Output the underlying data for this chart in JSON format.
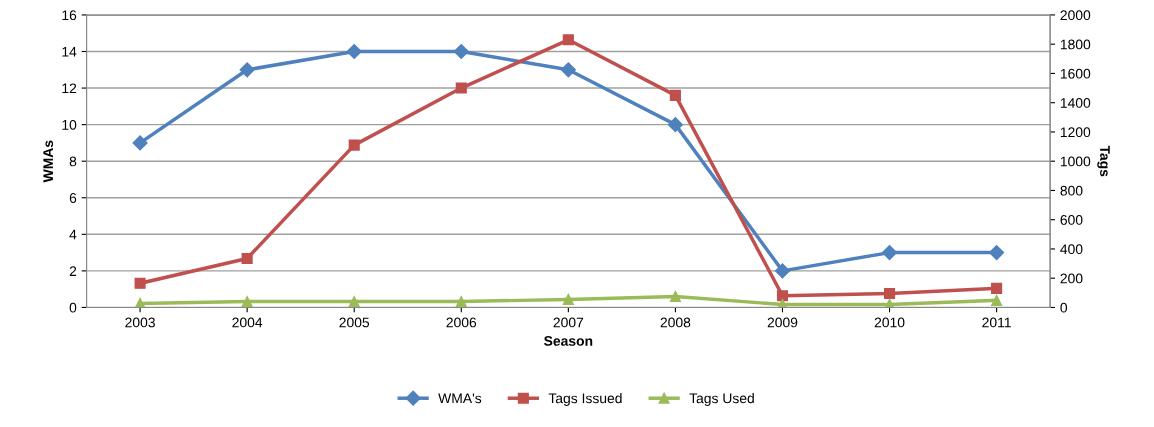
{
  "chart_data": {
    "type": "line",
    "xlabel": "Season",
    "ylabel": "WMAs",
    "y2label": "Tags",
    "categories": [
      "2003",
      "2004",
      "2005",
      "2006",
      "2007",
      "2008",
      "2009",
      "2010",
      "2011"
    ],
    "series": [
      {
        "name": "WMA's",
        "color": "#4f81bd",
        "marker": "diamond",
        "values": [
          9,
          13,
          14,
          14,
          13,
          10,
          2,
          3,
          3
        ]
      },
      {
        "name": "Tags Issued",
        "color": "#c0504d",
        "marker": "square",
        "axis": "y2",
        "values": [
          165,
          335,
          1110,
          1500,
          1830,
          1450,
          80,
          95,
          130
        ]
      },
      {
        "name": "Tags Used",
        "color": "#9bbb59",
        "marker": "triangle",
        "axis": "y2",
        "values": [
          27,
          40,
          40,
          40,
          55,
          75,
          20,
          20,
          48
        ]
      }
    ],
    "ylim": [
      0,
      16
    ],
    "yticks": [
      0,
      2,
      4,
      6,
      8,
      10,
      12,
      14,
      16
    ],
    "y2lim": [
      0,
      2000
    ],
    "y2ticks": [
      0,
      200,
      400,
      600,
      800,
      1000,
      1200,
      1400,
      1600,
      1800,
      2000
    ],
    "grid": "y",
    "legend": "bottom"
  }
}
